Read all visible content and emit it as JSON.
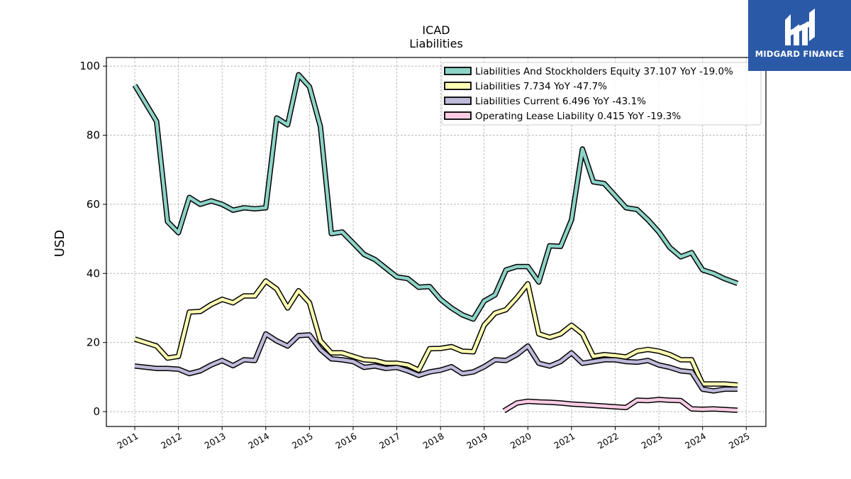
{
  "logo": {
    "text": "MIDGARD FINANCE",
    "icon": "midgard-logo-icon",
    "color": "#2a59a8"
  },
  "chart_data": {
    "type": "line",
    "title": "ICAD",
    "subtitle": "Liabilities",
    "xlabel": "",
    "ylabel": "USD",
    "xlim": [
      2010.35,
      2025.45
    ],
    "ylim": [
      -4.3,
      102.5
    ],
    "yticks": [
      0,
      20,
      40,
      60,
      80,
      100
    ],
    "xticks": [
      "2011",
      "2012",
      "2013",
      "2014",
      "2015",
      "2016",
      "2017",
      "2018",
      "2019",
      "2020",
      "2021",
      "2022",
      "2023",
      "2024",
      "2025"
    ],
    "grid": true,
    "legend_position": "top-right",
    "series": [
      {
        "name": "Liabilities And Stockholders Equity  37.107 YoY -19.0%",
        "color": "#8dd3c7",
        "x": [
          2011.0,
          2011.5,
          2011.75,
          2012.0,
          2012.25,
          2012.5,
          2012.75,
          2013.0,
          2013.25,
          2013.5,
          2013.75,
          2014.0,
          2014.25,
          2014.5,
          2014.75,
          2015.0,
          2015.25,
          2015.5,
          2015.75,
          2016.0,
          2016.25,
          2016.5,
          2016.75,
          2017.0,
          2017.25,
          2017.5,
          2017.75,
          2018.0,
          2018.25,
          2018.5,
          2018.75,
          2019.0,
          2019.25,
          2019.5,
          2019.75,
          2020.0,
          2020.25,
          2020.5,
          2020.75,
          2021.0,
          2021.25,
          2021.5,
          2021.75,
          2022.0,
          2022.25,
          2022.5,
          2022.75,
          2023.0,
          2023.25,
          2023.5,
          2023.75,
          2024.0,
          2024.25,
          2024.5,
          2024.8
        ],
        "values": [
          94.5,
          84.0,
          55.0,
          51.8,
          62.0,
          60.0,
          61.0,
          60.0,
          58.3,
          59.0,
          58.7,
          59.0,
          85.0,
          83.0,
          97.5,
          94.0,
          82.5,
          51.5,
          52.0,
          48.8,
          45.5,
          44.0,
          41.5,
          39.0,
          38.5,
          36.0,
          36.2,
          32.5,
          30.0,
          28.0,
          26.8,
          32.0,
          33.8,
          41.0,
          42.0,
          42.0,
          37.5,
          48.0,
          47.8,
          55.5,
          76.0,
          66.5,
          66.0,
          62.5,
          59.0,
          58.5,
          55.5,
          52.0,
          47.5,
          44.8,
          46.0,
          41.0,
          40.0,
          38.5,
          37.1
        ]
      },
      {
        "name": "Liabilities  7.734 YoY -47.7%",
        "color": "#ffffb3",
        "x": [
          2011.0,
          2011.5,
          2011.75,
          2012.0,
          2012.25,
          2012.5,
          2012.75,
          2013.0,
          2013.25,
          2013.5,
          2013.75,
          2014.0,
          2014.25,
          2014.5,
          2014.75,
          2015.0,
          2015.25,
          2015.5,
          2015.75,
          2016.0,
          2016.25,
          2016.5,
          2016.75,
          2017.0,
          2017.25,
          2017.5,
          2017.75,
          2018.0,
          2018.25,
          2018.5,
          2018.75,
          2019.0,
          2019.25,
          2019.5,
          2019.75,
          2020.0,
          2020.25,
          2020.5,
          2020.75,
          2021.0,
          2021.25,
          2021.5,
          2021.75,
          2022.0,
          2022.25,
          2022.5,
          2022.75,
          2023.0,
          2023.25,
          2023.5,
          2023.75,
          2024.0,
          2024.25,
          2024.5,
          2024.8
        ],
        "values": [
          21.0,
          19.0,
          15.5,
          16.0,
          28.8,
          29.0,
          31.0,
          32.5,
          31.5,
          33.5,
          33.5,
          37.8,
          35.5,
          30.0,
          35.0,
          31.5,
          20.5,
          17.0,
          17.0,
          16.0,
          15.0,
          14.8,
          14.0,
          14.0,
          13.5,
          12.0,
          18.2,
          18.3,
          18.8,
          17.5,
          17.3,
          25.0,
          28.5,
          29.5,
          33.0,
          37.0,
          22.5,
          21.5,
          22.5,
          25.0,
          22.5,
          16.0,
          16.5,
          16.2,
          15.8,
          17.5,
          18.0,
          17.5,
          16.5,
          15.0,
          15.0,
          8.0,
          8.0,
          8.0,
          7.7
        ]
      },
      {
        "name": "Liabilities Current  6.496 YoY -43.1%",
        "color": "#bebada",
        "x": [
          2011.0,
          2011.5,
          2011.75,
          2012.0,
          2012.25,
          2012.5,
          2012.75,
          2013.0,
          2013.25,
          2013.5,
          2013.75,
          2014.0,
          2014.25,
          2014.5,
          2014.75,
          2015.0,
          2015.25,
          2015.5,
          2015.75,
          2016.0,
          2016.25,
          2016.5,
          2016.75,
          2017.0,
          2017.25,
          2017.5,
          2017.75,
          2018.0,
          2018.25,
          2018.5,
          2018.75,
          2019.0,
          2019.25,
          2019.5,
          2019.75,
          2020.0,
          2020.25,
          2020.5,
          2020.75,
          2021.0,
          2021.25,
          2021.5,
          2021.75,
          2022.0,
          2022.25,
          2022.5,
          2022.75,
          2023.0,
          2023.25,
          2023.5,
          2023.75,
          2024.0,
          2024.25,
          2024.5,
          2024.8
        ],
        "values": [
          13.2,
          12.5,
          12.5,
          12.3,
          11.0,
          11.8,
          13.5,
          14.8,
          13.3,
          15.0,
          14.8,
          22.5,
          20.5,
          19.0,
          22.0,
          22.2,
          18.0,
          15.3,
          15.0,
          14.5,
          12.8,
          13.2,
          12.5,
          12.8,
          11.8,
          10.5,
          11.5,
          12.0,
          13.0,
          11.0,
          11.5,
          13.0,
          15.0,
          14.8,
          16.5,
          19.0,
          14.0,
          13.2,
          14.5,
          17.0,
          14.0,
          14.5,
          15.0,
          15.0,
          14.5,
          14.3,
          14.8,
          13.5,
          12.8,
          11.8,
          11.5,
          6.5,
          6.0,
          6.5,
          6.5
        ]
      },
      {
        "name": "Operating Lease Liability  0.415 YoY -19.3%",
        "color": "#fccde5",
        "x": [
          2019.45,
          2019.75,
          2020.0,
          2020.25,
          2020.5,
          2020.75,
          2021.0,
          2021.25,
          2021.5,
          2021.75,
          2022.0,
          2022.25,
          2022.5,
          2022.75,
          2023.0,
          2023.25,
          2023.5,
          2023.75,
          2024.0,
          2024.25,
          2024.5,
          2024.8
        ],
        "values": [
          0.2,
          2.5,
          3.0,
          2.8,
          2.7,
          2.5,
          2.2,
          2.0,
          1.8,
          1.6,
          1.4,
          1.2,
          3.3,
          3.2,
          3.5,
          3.3,
          3.2,
          0.8,
          0.7,
          0.8,
          0.6,
          0.4
        ]
      }
    ]
  }
}
